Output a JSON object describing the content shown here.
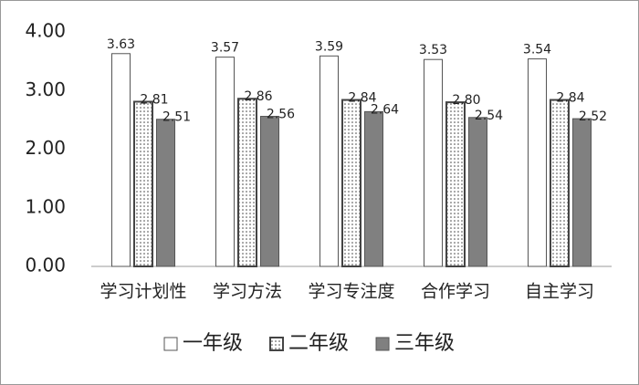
{
  "chart_data": {
    "type": "bar",
    "categories": [
      "学习计划性",
      "学习方法",
      "学习专注度",
      "合作学习",
      "自主学习"
    ],
    "series": [
      {
        "name": "一年级",
        "color": "#ffffff",
        "values": [
          3.63,
          3.57,
          3.59,
          3.53,
          3.54
        ],
        "value_labels": [
          "3.63",
          "3.57",
          "3.59",
          "3.53",
          "3.54"
        ]
      },
      {
        "name": "二年级",
        "color": "#ffffff",
        "pattern": "dotted",
        "values": [
          2.81,
          2.86,
          2.84,
          2.8,
          2.84
        ],
        "value_labels": [
          "2.81",
          "2.86",
          "2.84",
          "2.80",
          "2.84"
        ]
      },
      {
        "name": "三年级",
        "color": "#808080",
        "values": [
          2.51,
          2.56,
          2.64,
          2.54,
          2.52
        ],
        "value_labels": [
          "2.51",
          "2.56",
          "2.64",
          "2.54",
          "2.52"
        ]
      }
    ],
    "ylim": [
      0,
      4
    ],
    "yticks": [
      {
        "value": 0,
        "label": "0.00"
      },
      {
        "value": 1,
        "label": "1.00"
      },
      {
        "value": 2,
        "label": "2.00"
      },
      {
        "value": 3,
        "label": "3.00"
      },
      {
        "value": 4,
        "label": "4.00"
      }
    ],
    "grid": false,
    "legend": "bottom"
  }
}
